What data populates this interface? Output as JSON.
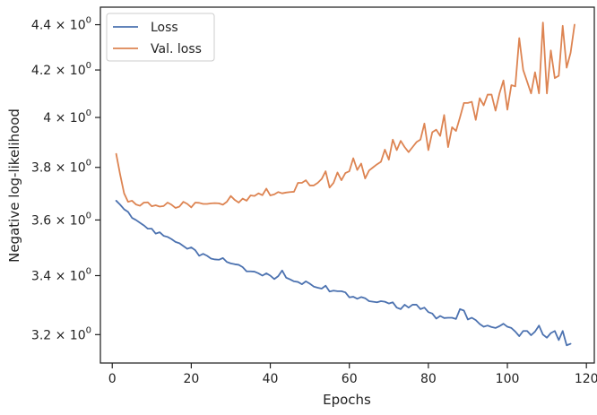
{
  "chart_data": {
    "type": "line",
    "title": "",
    "xlabel": "Epochs",
    "ylabel": "Negative log-likelihood",
    "xlim": [
      -3,
      122
    ],
    "ylim": [
      3.108,
      4.48
    ],
    "yscale": "log",
    "grid": false,
    "legend_position": "top-left",
    "x_ticks": [
      0,
      20,
      40,
      60,
      80,
      100,
      120
    ],
    "x_tick_labels": [
      "0",
      "20",
      "40",
      "60",
      "80",
      "100",
      "120"
    ],
    "y_ticks": [
      3.2,
      3.4,
      3.6,
      3.8,
      4.0,
      4.2,
      4.4
    ],
    "y_tick_mantissa": [
      "3.2",
      "3.4",
      "3.6",
      "3.8",
      "4",
      "4.2",
      "4.4"
    ],
    "y_tick_times": "×",
    "y_tick_base": "10",
    "y_tick_exp": "0",
    "series": [
      {
        "name": "Loss",
        "color": "#4c72b0",
        "x_start": 1,
        "values": [
          3.672,
          3.657,
          3.64,
          3.63,
          3.608,
          3.6,
          3.59,
          3.58,
          3.568,
          3.568,
          3.55,
          3.555,
          3.542,
          3.538,
          3.53,
          3.52,
          3.515,
          3.505,
          3.495,
          3.5,
          3.49,
          3.47,
          3.477,
          3.47,
          3.46,
          3.457,
          3.456,
          3.462,
          3.448,
          3.443,
          3.44,
          3.438,
          3.43,
          3.415,
          3.415,
          3.414,
          3.408,
          3.4,
          3.408,
          3.4,
          3.388,
          3.398,
          3.418,
          3.393,
          3.387,
          3.38,
          3.378,
          3.37,
          3.38,
          3.372,
          3.362,
          3.358,
          3.355,
          3.365,
          3.345,
          3.348,
          3.346,
          3.346,
          3.342,
          3.325,
          3.327,
          3.32,
          3.326,
          3.322,
          3.312,
          3.31,
          3.308,
          3.312,
          3.31,
          3.304,
          3.308,
          3.29,
          3.285,
          3.3,
          3.29,
          3.3,
          3.3,
          3.285,
          3.29,
          3.275,
          3.27,
          3.253,
          3.262,
          3.255,
          3.256,
          3.256,
          3.252,
          3.285,
          3.28,
          3.25,
          3.256,
          3.248,
          3.235,
          3.226,
          3.23,
          3.225,
          3.222,
          3.228,
          3.236,
          3.226,
          3.222,
          3.21,
          3.195,
          3.212,
          3.212,
          3.198,
          3.21,
          3.23,
          3.2,
          3.19,
          3.205,
          3.212,
          3.182,
          3.212,
          3.165,
          3.17
        ]
      },
      {
        "name": "Val. loss",
        "color": "#dd8452",
        "x_start": 1,
        "values": [
          3.853,
          3.772,
          3.7,
          3.668,
          3.672,
          3.658,
          3.653,
          3.665,
          3.666,
          3.651,
          3.655,
          3.65,
          3.652,
          3.665,
          3.657,
          3.645,
          3.65,
          3.668,
          3.66,
          3.647,
          3.665,
          3.664,
          3.66,
          3.66,
          3.662,
          3.663,
          3.662,
          3.657,
          3.668,
          3.69,
          3.675,
          3.665,
          3.68,
          3.672,
          3.692,
          3.69,
          3.7,
          3.693,
          3.718,
          3.692,
          3.696,
          3.705,
          3.7,
          3.703,
          3.705,
          3.706,
          3.74,
          3.74,
          3.75,
          3.73,
          3.73,
          3.74,
          3.755,
          3.785,
          3.722,
          3.74,
          3.78,
          3.75,
          3.778,
          3.785,
          3.836,
          3.79,
          3.815,
          3.757,
          3.788,
          3.8,
          3.812,
          3.822,
          3.87,
          3.83,
          3.91,
          3.868,
          3.905,
          3.88,
          3.86,
          3.88,
          3.9,
          3.91,
          3.975,
          3.868,
          3.94,
          3.95,
          3.925,
          4.01,
          3.88,
          3.96,
          3.945,
          4.0,
          4.06,
          4.06,
          4.065,
          3.99,
          4.08,
          4.05,
          4.095,
          4.095,
          4.028,
          4.1,
          4.155,
          4.032,
          4.135,
          4.13,
          4.34,
          4.2,
          4.15,
          4.1,
          4.19,
          4.1,
          4.41,
          4.1,
          4.285,
          4.165,
          4.175,
          4.395,
          4.21,
          4.275,
          4.4
        ]
      }
    ]
  }
}
